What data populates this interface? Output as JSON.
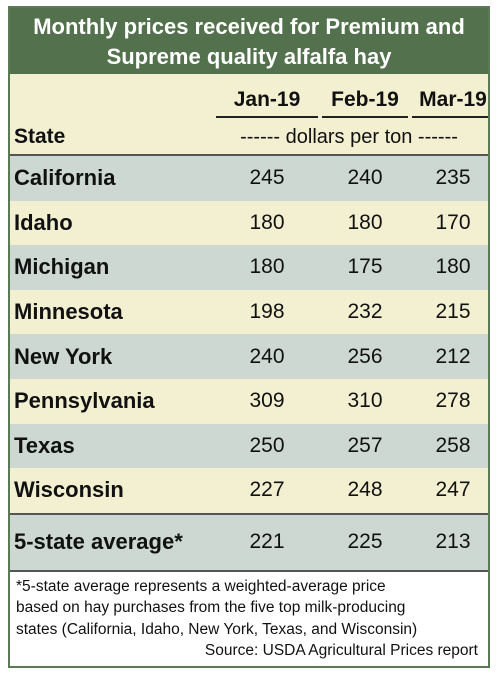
{
  "title": {
    "line1": "Monthly prices received for Premium and",
    "line2": "Supreme quality alfalfa hay"
  },
  "chart_data": {
    "type": "table",
    "title": "Monthly prices received for Premium and Supreme quality alfalfa hay",
    "row_header": "State",
    "units": "------ dollars per ton ------",
    "columns": [
      "Jan-19",
      "Feb-19",
      "Mar-19"
    ],
    "rows": [
      {
        "state": "California",
        "values": [
          "245",
          "240",
          "235"
        ]
      },
      {
        "state": "Idaho",
        "values": [
          "180",
          "180",
          "170"
        ]
      },
      {
        "state": "Michigan",
        "values": [
          "180",
          "175",
          "180"
        ]
      },
      {
        "state": "Minnesota",
        "values": [
          "198",
          "232",
          "215"
        ]
      },
      {
        "state": "New York",
        "values": [
          "240",
          "256",
          "212"
        ]
      },
      {
        "state": "Pennsylvania",
        "values": [
          "309",
          "310",
          "278"
        ]
      },
      {
        "state": "Texas",
        "values": [
          "250",
          "257",
          "258"
        ]
      },
      {
        "state": "Wisconsin",
        "values": [
          "227",
          "248",
          "247"
        ]
      }
    ],
    "average": {
      "state": "5-state average*",
      "values": [
        "221",
        "225",
        "213"
      ]
    }
  },
  "footnote": {
    "line1": "*5-state average represents  a weighted-average price",
    "line2": "based on hay purchases from the five top milk-producing",
    "line3": "states (California, Idaho, New York, Texas, and Wisconsin)"
  },
  "source": "Source: USDA Agricultural Prices report",
  "colors": {
    "title_bg": "#52714c",
    "shaded_row": "#ccd8d1",
    "light_row": "#f3f0d2"
  }
}
